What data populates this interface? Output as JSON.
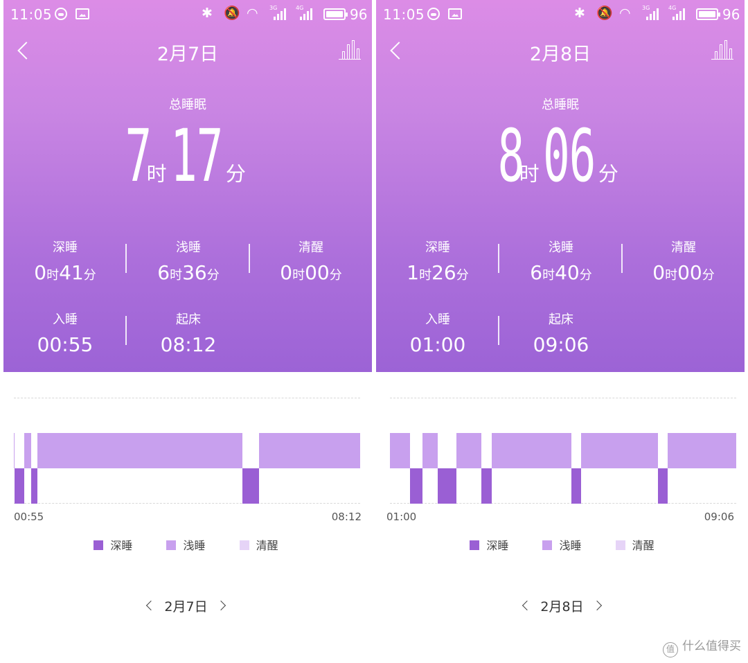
{
  "colors": {
    "deep": "#9a5fd4",
    "light": "#c8a0ee",
    "awake": "#e6d4f7"
  },
  "screens": [
    {
      "status": {
        "time": "11:05",
        "battery": "96",
        "net1": "3G",
        "net2": "4G"
      },
      "nav": {
        "title": "2月7日"
      },
      "total": {
        "label": "总睡眠",
        "hours": "7",
        "hour_unit": "时",
        "minutes": "17",
        "minute_unit": "分"
      },
      "stats": [
        {
          "label": "深睡",
          "h": "0",
          "m": "41"
        },
        {
          "label": "浅睡",
          "h": "6",
          "m": "36"
        },
        {
          "label": "清醒",
          "h": "0",
          "m": "00"
        }
      ],
      "times": [
        {
          "label": "入睡",
          "value": "00:55"
        },
        {
          "label": "起床",
          "value": "08:12"
        }
      ],
      "units": {
        "h": "时",
        "m": "分"
      },
      "chart_data": {
        "type": "timeline",
        "x_start": "00:55",
        "x_end": "08:12",
        "segments": [
          {
            "stage": "light",
            "start": "00:55",
            "end": "00:56"
          },
          {
            "stage": "deep",
            "start": "00:56",
            "end": "01:08"
          },
          {
            "stage": "light",
            "start": "01:08",
            "end": "01:17"
          },
          {
            "stage": "deep",
            "start": "01:17",
            "end": "01:25"
          },
          {
            "stage": "light",
            "start": "01:25",
            "end": "05:43"
          },
          {
            "stage": "deep",
            "start": "05:43",
            "end": "06:04"
          },
          {
            "stage": "light",
            "start": "06:04",
            "end": "08:12"
          }
        ],
        "legend": [
          "深睡",
          "浅睡",
          "清醒"
        ]
      },
      "pager": {
        "label": "2月7日"
      }
    },
    {
      "status": {
        "time": "11:05",
        "battery": "96",
        "net1": "3G",
        "net2": "4G"
      },
      "nav": {
        "title": "2月8日"
      },
      "total": {
        "label": "总睡眠",
        "hours": "8",
        "hour_unit": "时",
        "minutes": "06",
        "minute_unit": "分"
      },
      "stats": [
        {
          "label": "深睡",
          "h": "1",
          "m": "26"
        },
        {
          "label": "浅睡",
          "h": "6",
          "m": "40"
        },
        {
          "label": "清醒",
          "h": "0",
          "m": "00"
        }
      ],
      "times": [
        {
          "label": "入睡",
          "value": "01:00"
        },
        {
          "label": "起床",
          "value": "09:06"
        }
      ],
      "units": {
        "h": "时",
        "m": "分"
      },
      "chart_data": {
        "type": "timeline",
        "x_start": "01:00",
        "x_end": "09:06",
        "segments": [
          {
            "stage": "light",
            "start": "01:00",
            "end": "01:28"
          },
          {
            "stage": "deep",
            "start": "01:28",
            "end": "01:46"
          },
          {
            "stage": "light",
            "start": "01:46",
            "end": "02:07"
          },
          {
            "stage": "deep",
            "start": "02:07",
            "end": "02:33"
          },
          {
            "stage": "light",
            "start": "02:33",
            "end": "03:08"
          },
          {
            "stage": "deep",
            "start": "03:08",
            "end": "03:23"
          },
          {
            "stage": "light",
            "start": "03:23",
            "end": "05:15"
          },
          {
            "stage": "deep",
            "start": "05:15",
            "end": "05:28"
          },
          {
            "stage": "light",
            "start": "05:28",
            "end": "07:16"
          },
          {
            "stage": "deep",
            "start": "07:16",
            "end": "07:30"
          },
          {
            "stage": "light",
            "start": "07:30",
            "end": "09:06"
          }
        ],
        "legend": [
          "深睡",
          "浅睡",
          "清醒"
        ]
      },
      "pager": {
        "label": "2月8日"
      }
    }
  ],
  "watermark": {
    "text": "什么值得买",
    "badge": "值"
  }
}
